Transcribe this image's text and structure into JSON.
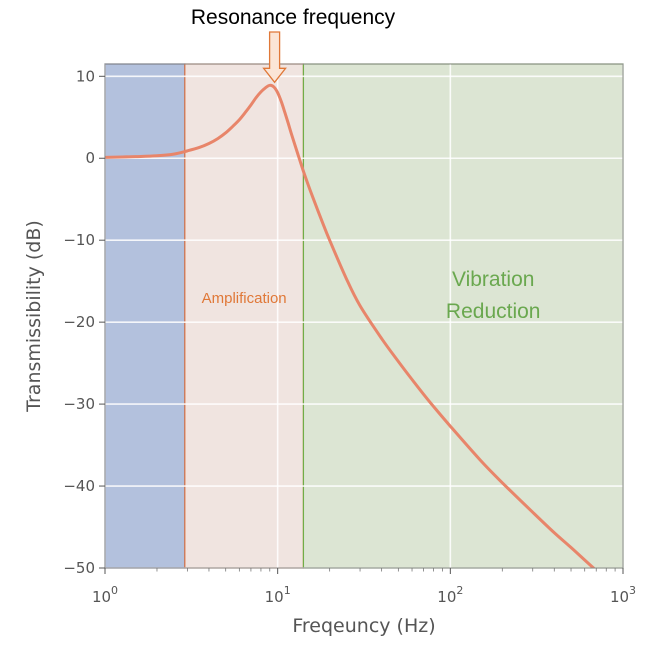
{
  "chart_data": {
    "type": "line",
    "title": "",
    "xlabel": "Freqeuncy (Hz)",
    "ylabel": "Transmissibility (dB)",
    "xscale": "log",
    "xlim": [
      1,
      1000
    ],
    "ylim": [
      -50,
      11.5
    ],
    "grid": true,
    "x_ticks": [
      {
        "value": 1,
        "base": "10",
        "exp": "0"
      },
      {
        "value": 10,
        "base": "10",
        "exp": "1"
      },
      {
        "value": 100,
        "base": "10",
        "exp": "2"
      },
      {
        "value": 1000,
        "base": "10",
        "exp": "3"
      }
    ],
    "y_ticks": [
      {
        "value": 10,
        "label": "10"
      },
      {
        "value": 0,
        "label": "0"
      },
      {
        "value": -10,
        "label": "−10"
      },
      {
        "value": -20,
        "label": "−20"
      },
      {
        "value": -30,
        "label": "−30"
      },
      {
        "value": -40,
        "label": "−40"
      },
      {
        "value": -50,
        "label": "−50"
      }
    ],
    "regions": [
      {
        "name": "isolation-region",
        "x_start": 1,
        "x_end": 2.9,
        "fill": "#b3c1dd",
        "stroke": "#4a5f95",
        "label": ""
      },
      {
        "name": "amplification-region",
        "x_start": 2.9,
        "x_end": 14.1,
        "fill": "#f0e4e0",
        "stroke": "#e07848",
        "label": "Amplification",
        "label_color": "#e07838"
      },
      {
        "name": "vibration-reduction-region",
        "x_start": 14.1,
        "x_end": 1000,
        "fill": "#dce5d3",
        "stroke": "#70ad47",
        "label": "Vibration\nReduction",
        "label_color": "#6aa84f"
      }
    ],
    "series": [
      {
        "color": "#e8856a",
        "x": [
          1,
          1.5,
          2,
          2.5,
          3,
          3.5,
          4,
          4.5,
          5,
          5.5,
          6,
          6.5,
          7,
          7.5,
          8,
          8.5,
          9,
          9.5,
          10,
          10.5,
          11,
          11.5,
          12,
          13,
          14,
          15,
          16,
          18,
          20,
          25,
          30,
          40,
          50,
          60,
          70,
          80,
          100,
          150,
          200,
          300,
          400,
          500,
          700,
          1000
        ],
        "y": [
          0.1,
          0.2,
          0.3,
          0.5,
          0.9,
          1.3,
          1.8,
          2.4,
          3.1,
          3.9,
          4.7,
          5.6,
          6.5,
          7.4,
          8.1,
          8.6,
          8.9,
          8.7,
          8.0,
          6.9,
          5.6,
          4.3,
          3.0,
          0.7,
          -1.4,
          -3.2,
          -4.8,
          -7.6,
          -10.0,
          -14.7,
          -18.0,
          -22.0,
          -24.8,
          -27.0,
          -28.8,
          -30.3,
          -32.7,
          -36.9,
          -39.6,
          -43.2,
          -45.7,
          -47.5,
          -50.3,
          -53.1
        ]
      }
    ],
    "annotation": {
      "text": "Resonance frequency",
      "x": 9.6,
      "y": 8.9,
      "arrow_fill": "#fbe5d6",
      "arrow_stroke": "#e07838"
    }
  }
}
